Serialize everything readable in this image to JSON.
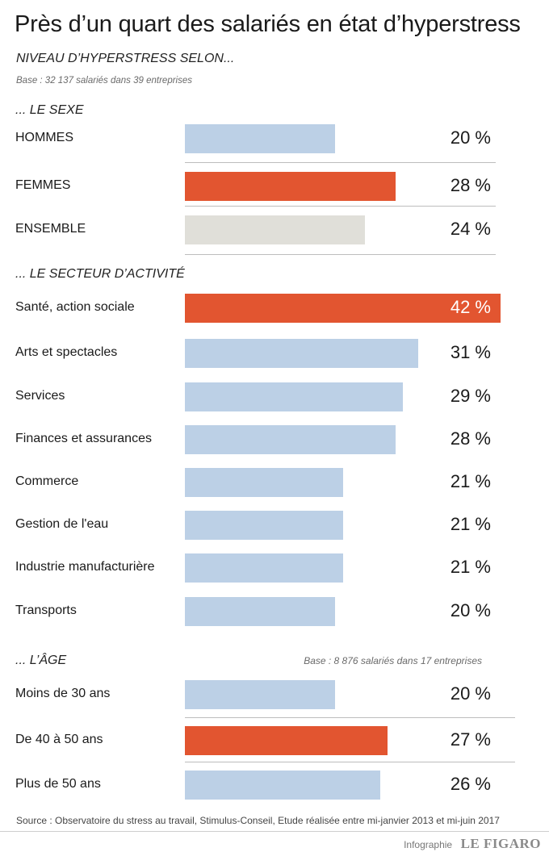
{
  "title": "Près d’un quart des salariés en état d’hyperstress",
  "subtitle": "NIVEAU D’HYPERSTRESS SELON...",
  "base_note": "Base : 32 137 salariés dans 39 entreprises",
  "colors": {
    "highlight": "#e25530",
    "default": "#bcd0e6",
    "neutral": "#e0dfd9"
  },
  "chart_data": {
    "type": "bar",
    "unit": "%",
    "groups": [
      {
        "label": "... LE SEXE",
        "note": "",
        "categories": [
          "HOMMES",
          "FEMMES",
          "ENSEMBLE"
        ],
        "values": [
          20,
          28,
          24
        ],
        "display": [
          "20 %",
          "28 %",
          "24 %"
        ],
        "colors": [
          "#bcd0e6",
          "#e25530",
          "#e0dfd9"
        ]
      },
      {
        "label": "... LE SECTEUR D’ACTIVITÉ",
        "note": "",
        "categories": [
          "Santé, action sociale",
          "Arts et spectacles",
          "Services",
          "Finances et assurances",
          "Commerce",
          "Gestion de l'eau",
          "Industrie manufacturière",
          "Transports"
        ],
        "values": [
          42,
          31,
          29,
          28,
          21,
          21,
          21,
          20
        ],
        "display": [
          "42 %",
          "31 %",
          "29 %",
          "28 %",
          "21 %",
          "21 %",
          "21 %",
          "20 %"
        ],
        "colors": [
          "#e25530",
          "#bcd0e6",
          "#bcd0e6",
          "#bcd0e6",
          "#bcd0e6",
          "#bcd0e6",
          "#bcd0e6",
          "#bcd0e6"
        ]
      },
      {
        "label": "... L’ÂGE",
        "note": "Base : 8 876 salariés dans 17 entreprises",
        "categories": [
          "Moins de 30 ans",
          "De 40 à 50 ans",
          "Plus de 50 ans"
        ],
        "values": [
          20,
          27,
          26
        ],
        "display": [
          "20 %",
          "27 %",
          "26 %"
        ],
        "colors": [
          "#bcd0e6",
          "#e25530",
          "#bcd0e6"
        ]
      }
    ]
  },
  "source": "Source : Observatoire du stress au travail, Stimulus-Conseil, Etude réalisée entre mi-janvier 2013 et mi-juin 2017",
  "credit": {
    "prefix": "Infographie",
    "brand": "LE FIGARO"
  }
}
